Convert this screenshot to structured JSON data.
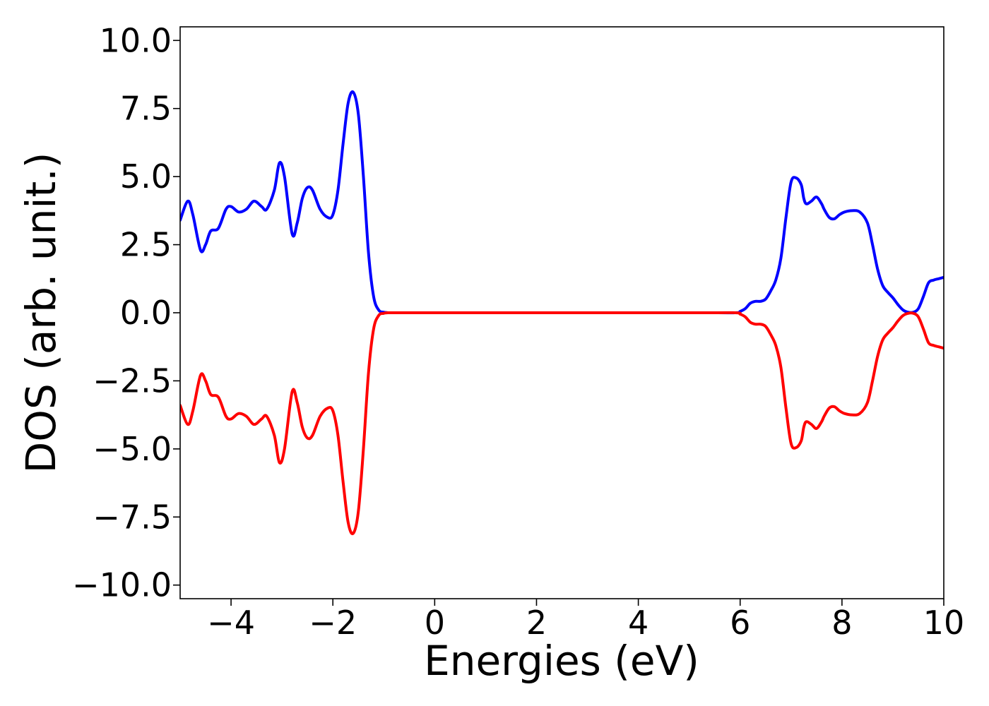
{
  "chart_data": {
    "type": "line",
    "title": "",
    "xlabel": "Energies (eV)",
    "ylabel": "DOS (arb. unit.)",
    "xlim": [
      -5,
      10
    ],
    "ylim": [
      -10.5,
      10.5
    ],
    "grid": false,
    "x_ticks": [
      {
        "value": -4,
        "label": "−4"
      },
      {
        "value": -2,
        "label": "−2"
      },
      {
        "value": 0,
        "label": "0"
      },
      {
        "value": 2,
        "label": "2"
      },
      {
        "value": 4,
        "label": "4"
      },
      {
        "value": 6,
        "label": "6"
      },
      {
        "value": 8,
        "label": "8"
      },
      {
        "value": 10,
        "label": "10"
      }
    ],
    "y_ticks": [
      {
        "value": 10,
        "label": "10.0"
      },
      {
        "value": 7.5,
        "label": "7.5"
      },
      {
        "value": 5,
        "label": "5.0"
      },
      {
        "value": 2.5,
        "label": "2.5"
      },
      {
        "value": 0,
        "label": "0.0"
      },
      {
        "value": -2.5,
        "label": "−2.5"
      },
      {
        "value": -5,
        "label": "−5.0"
      },
      {
        "value": -7.5,
        "label": "−7.5"
      },
      {
        "value": -10,
        "label": "−10.0"
      }
    ],
    "series": [
      {
        "color": "#0000ff",
        "x": [
          -5.0,
          -4.85,
          -4.75,
          -4.6,
          -4.5,
          -4.4,
          -4.25,
          -4.1,
          -4.0,
          -3.85,
          -3.7,
          -3.55,
          -3.4,
          -3.3,
          -3.15,
          -3.05,
          -2.95,
          -2.8,
          -2.7,
          -2.6,
          -2.5,
          -2.4,
          -2.25,
          -2.1,
          -2.0,
          -1.9,
          -1.8,
          -1.7,
          -1.6,
          -1.5,
          -1.4,
          -1.3,
          -1.2,
          -1.1,
          -1.0,
          -0.9,
          -0.8,
          -0.7,
          -0.6,
          -0.5,
          -0.4,
          0.0,
          5.0,
          5.9,
          6.0,
          6.1,
          6.2,
          6.3,
          6.4,
          6.5,
          6.6,
          6.7,
          6.8,
          6.9,
          7.0,
          7.1,
          7.2,
          7.25,
          7.3,
          7.4,
          7.5,
          7.6,
          7.65,
          7.75,
          7.85,
          7.95,
          8.05,
          8.2,
          8.35,
          8.5,
          8.6,
          8.7,
          8.8,
          8.9,
          9.0,
          9.1,
          9.2,
          9.3,
          9.4,
          9.5,
          9.6,
          9.7,
          9.8,
          9.9,
          10.0
        ],
        "y": [
          3.4,
          4.1,
          3.6,
          2.3,
          2.5,
          3.0,
          3.1,
          3.8,
          3.9,
          3.7,
          3.8,
          4.1,
          3.9,
          3.8,
          4.5,
          5.5,
          5.0,
          2.9,
          3.3,
          4.2,
          4.6,
          4.5,
          3.8,
          3.5,
          3.6,
          4.5,
          6.2,
          7.7,
          8.1,
          7.3,
          5.0,
          2.2,
          0.6,
          0.1,
          0.02,
          0.0,
          0.0,
          0.0,
          0.0,
          0.0,
          0.0,
          0.0,
          0.0,
          0.0,
          0.05,
          0.15,
          0.35,
          0.42,
          0.42,
          0.5,
          0.8,
          1.2,
          2.0,
          3.5,
          4.8,
          4.95,
          4.7,
          4.2,
          4.0,
          4.1,
          4.25,
          4.0,
          3.8,
          3.5,
          3.45,
          3.6,
          3.7,
          3.75,
          3.7,
          3.3,
          2.5,
          1.6,
          1.0,
          0.75,
          0.55,
          0.3,
          0.1,
          0.02,
          0.02,
          0.15,
          0.6,
          1.1,
          1.2,
          1.25,
          1.3
        ]
      },
      {
        "color": "#ff0000",
        "x": [
          -5.0,
          -4.85,
          -4.75,
          -4.6,
          -4.5,
          -4.4,
          -4.25,
          -4.1,
          -4.0,
          -3.85,
          -3.7,
          -3.55,
          -3.4,
          -3.3,
          -3.15,
          -3.05,
          -2.95,
          -2.8,
          -2.7,
          -2.6,
          -2.5,
          -2.4,
          -2.25,
          -2.1,
          -2.0,
          -1.9,
          -1.8,
          -1.7,
          -1.6,
          -1.5,
          -1.4,
          -1.3,
          -1.2,
          -1.1,
          -1.0,
          -0.9,
          -0.8,
          -0.7,
          -0.6,
          -0.5,
          -0.4,
          0.0,
          5.0,
          5.9,
          6.0,
          6.1,
          6.2,
          6.3,
          6.4,
          6.5,
          6.6,
          6.7,
          6.8,
          6.9,
          7.0,
          7.1,
          7.2,
          7.25,
          7.3,
          7.4,
          7.5,
          7.6,
          7.65,
          7.75,
          7.85,
          7.95,
          8.05,
          8.2,
          8.35,
          8.5,
          8.6,
          8.7,
          8.8,
          8.9,
          9.0,
          9.1,
          9.2,
          9.3,
          9.4,
          9.5,
          9.6,
          9.7,
          9.8,
          9.9,
          10.0
        ],
        "y": [
          -3.4,
          -4.1,
          -3.6,
          -2.3,
          -2.5,
          -3.0,
          -3.1,
          -3.8,
          -3.9,
          -3.7,
          -3.8,
          -4.1,
          -3.9,
          -3.8,
          -4.5,
          -5.5,
          -5.0,
          -2.9,
          -3.3,
          -4.2,
          -4.6,
          -4.5,
          -3.8,
          -3.5,
          -3.6,
          -4.5,
          -6.2,
          -7.7,
          -8.1,
          -7.3,
          -5.0,
          -2.2,
          -0.6,
          -0.1,
          -0.02,
          0.0,
          0.0,
          0.0,
          0.0,
          0.0,
          0.0,
          0.0,
          0.0,
          0.0,
          -0.05,
          -0.15,
          -0.35,
          -0.42,
          -0.42,
          -0.5,
          -0.8,
          -1.2,
          -2.0,
          -3.5,
          -4.8,
          -4.95,
          -4.7,
          -4.2,
          -4.0,
          -4.1,
          -4.25,
          -4.0,
          -3.8,
          -3.5,
          -3.45,
          -3.6,
          -3.7,
          -3.75,
          -3.7,
          -3.3,
          -2.5,
          -1.6,
          -1.0,
          -0.75,
          -0.55,
          -0.3,
          -0.1,
          -0.02,
          -0.02,
          -0.15,
          -0.6,
          -1.1,
          -1.2,
          -1.25,
          -1.3
        ]
      }
    ]
  }
}
